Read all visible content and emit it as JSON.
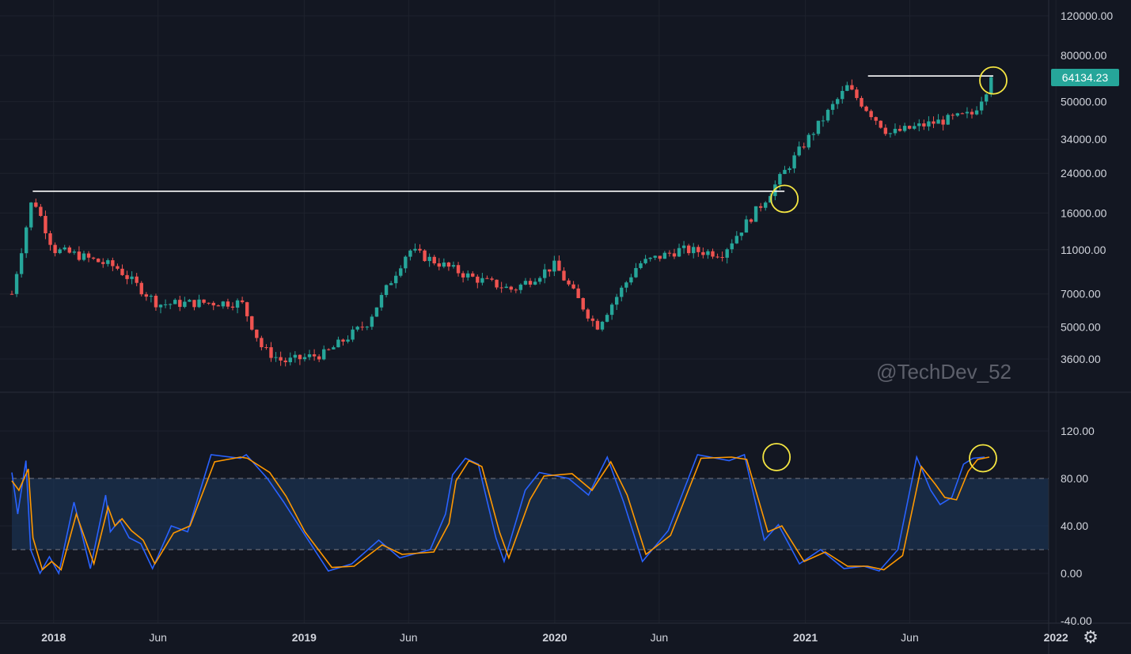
{
  "watermark": "@TechDev_52",
  "settings_icon": "gear-icon",
  "colors": {
    "background": "#131722",
    "up": "#26a69a",
    "down": "#ef5350",
    "stoch_k": "#2962ff",
    "stoch_d": "#ff9800",
    "band": "#1e3a5f",
    "annotation_circle": "#f5e642",
    "resistance_line": "#ffffff",
    "price_label": "#26a69a"
  },
  "chart_data": [
    {
      "type": "candlestick",
      "timeframe": "weekly",
      "y_scale": "log",
      "yticks": [
        "120000.00",
        "80000.00",
        "50000.00",
        "34000.00",
        "24000.00",
        "16000.00",
        "11000.00",
        "7000.00",
        "5000.00",
        "3600.00"
      ],
      "xticks": [
        "2018",
        "Jun",
        "2019",
        "Jun",
        "2020",
        "Jun",
        "2021",
        "Jun",
        "2022"
      ],
      "last_price": "64134.23",
      "approx_closes": [
        {
          "date": "2017-11",
          "close": 7000
        },
        {
          "date": "2017-12",
          "close": 19000
        },
        {
          "date": "2018-01",
          "close": 11000
        },
        {
          "date": "2018-02",
          "close": 10500
        },
        {
          "date": "2018-04",
          "close": 9200
        },
        {
          "date": "2018-06",
          "close": 6300
        },
        {
          "date": "2018-08",
          "close": 6400
        },
        {
          "date": "2018-10",
          "close": 6400
        },
        {
          "date": "2018-11",
          "close": 4000
        },
        {
          "date": "2018-12",
          "close": 3500
        },
        {
          "date": "2019-02",
          "close": 3800
        },
        {
          "date": "2019-04",
          "close": 5200
        },
        {
          "date": "2019-06",
          "close": 11000
        },
        {
          "date": "2019-07",
          "close": 10000
        },
        {
          "date": "2019-09",
          "close": 8300
        },
        {
          "date": "2019-11",
          "close": 7300
        },
        {
          "date": "2020-01",
          "close": 9400
        },
        {
          "date": "2020-03",
          "close": 5000
        },
        {
          "date": "2020-05",
          "close": 9500
        },
        {
          "date": "2020-07",
          "close": 11000
        },
        {
          "date": "2020-09",
          "close": 10600
        },
        {
          "date": "2020-11",
          "close": 18000
        },
        {
          "date": "2021-01",
          "close": 33000
        },
        {
          "date": "2021-03",
          "close": 58000
        },
        {
          "date": "2021-05",
          "close": 36000
        },
        {
          "date": "2021-07",
          "close": 40000
        },
        {
          "date": "2021-09",
          "close": 44000
        },
        {
          "date": "2021-10",
          "close": 64134
        }
      ],
      "annotations": [
        {
          "type": "horizontal_line",
          "from": "2017-12",
          "to": "2020-12",
          "price": 20000
        },
        {
          "type": "horizontal_line",
          "from": "2021-04",
          "to": "2021-10",
          "price": 64900
        },
        {
          "type": "circle",
          "date": "2020-12",
          "price": 18500
        },
        {
          "type": "circle",
          "date": "2021-10",
          "price": 62000
        }
      ]
    },
    {
      "type": "line",
      "indicator": "stochastic_rsi",
      "yticks": [
        "120.00",
        "80.00",
        "40.00",
        "0.00",
        "-40.00"
      ],
      "band": [
        20,
        80
      ],
      "series": [
        {
          "key": "k",
          "values": [
            [
              0,
              85
            ],
            [
              5,
              50
            ],
            [
              12,
              95
            ],
            [
              16,
              20
            ],
            [
              24,
              0
            ],
            [
              32,
              14
            ],
            [
              40,
              0
            ],
            [
              53,
              60
            ],
            [
              67,
              4
            ],
            [
              80,
              66
            ],
            [
              84,
              35
            ],
            [
              92,
              45
            ],
            [
              100,
              30
            ],
            [
              110,
              25
            ],
            [
              120,
              4
            ],
            [
              136,
              40
            ],
            [
              150,
              35
            ],
            [
              170,
              100
            ],
            [
              195,
              97
            ],
            [
              200,
              100
            ],
            [
              218,
              80
            ],
            [
              232,
              60
            ],
            [
              245,
              40
            ],
            [
              270,
              2
            ],
            [
              290,
              8
            ],
            [
              313,
              28
            ],
            [
              331,
              13
            ],
            [
              357,
              20
            ],
            [
              370,
              50
            ],
            [
              376,
              83
            ],
            [
              387,
              97
            ],
            [
              398,
              92
            ],
            [
              413,
              30
            ],
            [
              420,
              10
            ],
            [
              438,
              70
            ],
            [
              450,
              85
            ],
            [
              475,
              80
            ],
            [
              492,
              66
            ],
            [
              508,
              98
            ],
            [
              522,
              60
            ],
            [
              538,
              10
            ],
            [
              560,
              36
            ],
            [
              585,
              100
            ],
            [
              612,
              95
            ],
            [
              625,
              100
            ],
            [
              642,
              28
            ],
            [
              654,
              41
            ],
            [
              672,
              8
            ],
            [
              690,
              20
            ],
            [
              710,
              4
            ],
            [
              727,
              6
            ],
            [
              740,
              2
            ],
            [
              756,
              20
            ],
            [
              772,
              98
            ],
            [
              784,
              70
            ],
            [
              792,
              58
            ],
            [
              802,
              64
            ],
            [
              812,
              92
            ],
            [
              820,
              97
            ],
            [
              830,
              98
            ]
          ]
        },
        {
          "key": "d",
          "values": [
            [
              0,
              78
            ],
            [
              6,
              70
            ],
            [
              14,
              88
            ],
            [
              18,
              30
            ],
            [
              26,
              3
            ],
            [
              34,
              10
            ],
            [
              42,
              3
            ],
            [
              55,
              50
            ],
            [
              70,
              8
            ],
            [
              82,
              56
            ],
            [
              88,
              40
            ],
            [
              94,
              46
            ],
            [
              102,
              36
            ],
            [
              112,
              28
            ],
            [
              122,
              8
            ],
            [
              138,
              34
            ],
            [
              152,
              40
            ],
            [
              173,
              94
            ],
            [
              195,
              98
            ],
            [
              201,
              97
            ],
            [
              220,
              85
            ],
            [
              234,
              65
            ],
            [
              250,
              35
            ],
            [
              273,
              5
            ],
            [
              292,
              6
            ],
            [
              316,
              24
            ],
            [
              333,
              16
            ],
            [
              360,
              18
            ],
            [
              373,
              42
            ],
            [
              379,
              78
            ],
            [
              390,
              95
            ],
            [
              401,
              90
            ],
            [
              416,
              35
            ],
            [
              424,
              13
            ],
            [
              442,
              62
            ],
            [
              454,
              82
            ],
            [
              478,
              84
            ],
            [
              495,
              70
            ],
            [
              511,
              94
            ],
            [
              525,
              66
            ],
            [
              541,
              16
            ],
            [
              562,
              32
            ],
            [
              588,
              97
            ],
            [
              614,
              98
            ],
            [
              627,
              96
            ],
            [
              645,
              35
            ],
            [
              657,
              40
            ],
            [
              676,
              10
            ],
            [
              694,
              18
            ],
            [
              713,
              6
            ],
            [
              730,
              6
            ],
            [
              744,
              3
            ],
            [
              760,
              15
            ],
            [
              776,
              90
            ],
            [
              788,
              75
            ],
            [
              796,
              64
            ],
            [
              806,
              62
            ],
            [
              816,
              86
            ],
            [
              824,
              96
            ],
            [
              834,
              98
            ]
          ]
        }
      ],
      "annotations": [
        {
          "type": "circle",
          "date": "2020-12",
          "value": 98
        },
        {
          "type": "circle",
          "date": "2021-10",
          "value": 97
        }
      ]
    }
  ]
}
